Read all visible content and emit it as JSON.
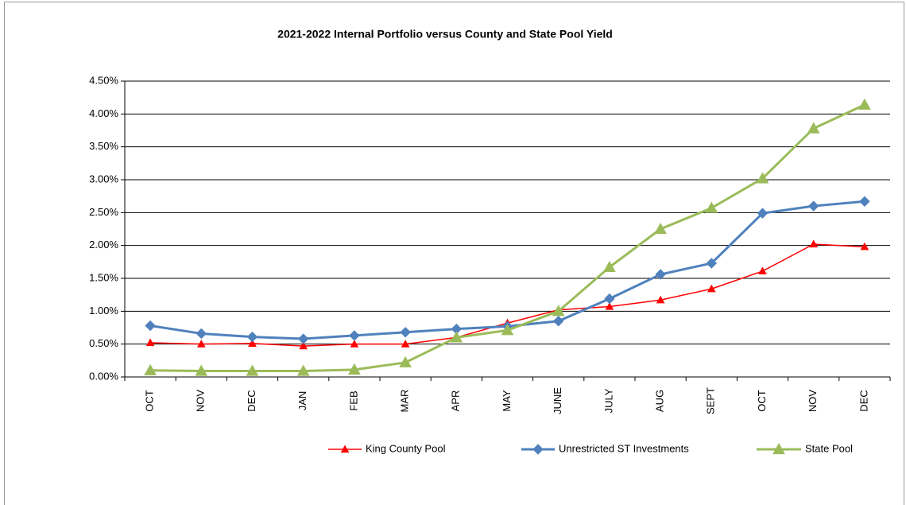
{
  "chart_data": {
    "type": "line",
    "title": "2021-2022 Internal Portfolio versus County and State Pool Yield",
    "categories": [
      "OCT",
      "NOV",
      "DEC",
      "JAN",
      "FEB",
      "MAR",
      "APR",
      "MAY",
      "JUNE",
      "JULY",
      "AUG",
      "SEPT",
      "OCT",
      "NOV",
      "DEC"
    ],
    "series": [
      {
        "name": "King County Pool",
        "color": "#ff0000",
        "marker": "triangle",
        "width": 1.5,
        "values": [
          0.52,
          0.5,
          0.51,
          0.47,
          0.5,
          0.5,
          0.6,
          0.82,
          1.02,
          1.07,
          1.17,
          1.34,
          1.61,
          2.02,
          1.98
        ]
      },
      {
        "name": "Unrestricted ST Investments",
        "color": "#4f81bd",
        "marker": "diamond",
        "width": 3,
        "values": [
          0.78,
          0.66,
          0.61,
          0.58,
          0.63,
          0.68,
          0.73,
          0.77,
          0.85,
          1.19,
          1.56,
          1.73,
          2.49,
          2.6,
          2.67
        ]
      },
      {
        "name": "State Pool",
        "color": "#9bbb59",
        "marker": "triangle-large",
        "width": 3,
        "values": [
          0.1,
          0.09,
          0.09,
          0.09,
          0.11,
          0.22,
          0.6,
          0.71,
          1.0,
          1.67,
          2.25,
          2.57,
          3.02,
          3.78,
          4.14
        ]
      }
    ],
    "ylim": [
      0,
      4.5
    ],
    "yticks": [
      {
        "value": 0,
        "label": "0.00%"
      },
      {
        "value": 0.5,
        "label": "0.50%"
      },
      {
        "value": 1,
        "label": "1.00%"
      },
      {
        "value": 1.5,
        "label": "1.50%"
      },
      {
        "value": 2,
        "label": "2.00%"
      },
      {
        "value": 2.5,
        "label": "2.50%"
      },
      {
        "value": 3,
        "label": "3.00%"
      },
      {
        "value": 3.5,
        "label": "3.50%"
      },
      {
        "value": 4,
        "label": "4.00%"
      },
      {
        "value": 4.5,
        "label": "4.50%"
      }
    ],
    "grid": true,
    "legend": "bottom"
  }
}
